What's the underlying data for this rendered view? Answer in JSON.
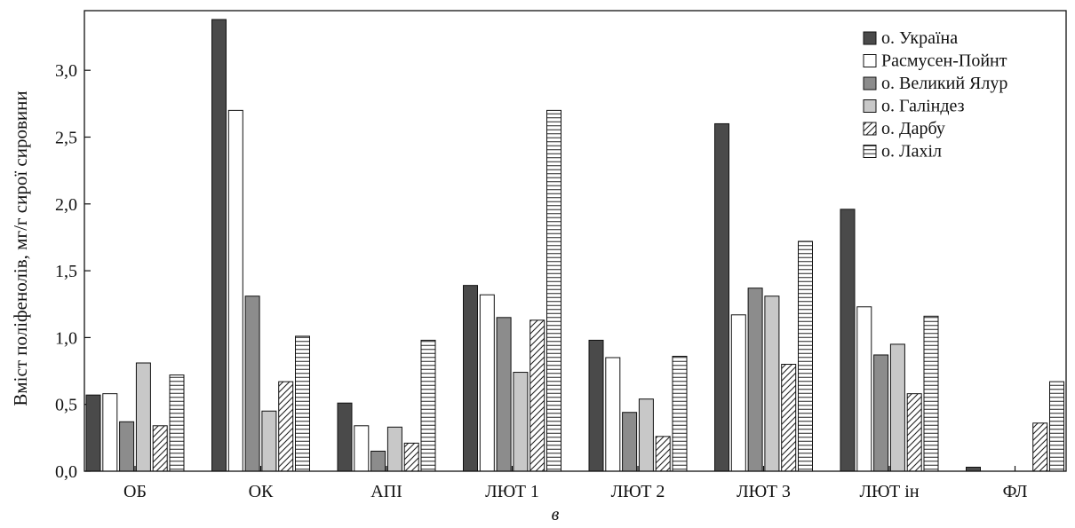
{
  "chart_data": {
    "type": "bar",
    "ylabel": "Вміст поліфенолів, мг/г сирої сировини",
    "xlabel": "в",
    "ylim": [
      0,
      3.4
    ],
    "y_ticks": [
      "0,0",
      "0,5",
      "1,0",
      "1,5",
      "2,0",
      "2,5",
      "3,0"
    ],
    "y_tick_values": [
      0,
      0.5,
      1.0,
      1.5,
      2.0,
      2.5,
      3.0
    ],
    "categories": [
      "ОБ",
      "ОК",
      "АПІ",
      "ЛЮТ 1",
      "ЛЮТ 2",
      "ЛЮТ 3",
      "ЛЮТ ін",
      "ФЛ"
    ],
    "legend_position": "top-right",
    "grid": false,
    "series": [
      {
        "name": "о. Україна",
        "pattern": "solid-dark",
        "color": "#4a4a4a",
        "values": [
          0.57,
          3.38,
          0.51,
          1.39,
          0.98,
          2.6,
          1.96,
          0.03
        ]
      },
      {
        "name": "Расмусен-Пойнт",
        "pattern": "white",
        "color": "#ffffff",
        "values": [
          0.58,
          2.7,
          0.34,
          1.32,
          0.85,
          1.17,
          1.23,
          0.0
        ]
      },
      {
        "name": "о. Великий Ялур",
        "pattern": "solid-mid",
        "color": "#8c8c8c",
        "values": [
          0.37,
          1.31,
          0.15,
          1.15,
          0.44,
          1.37,
          0.87,
          0.0
        ]
      },
      {
        "name": "о. Галіндез",
        "pattern": "solid-light",
        "color": "#c8c8c8",
        "values": [
          0.81,
          0.45,
          0.33,
          0.74,
          0.54,
          1.31,
          0.95,
          0.0
        ]
      },
      {
        "name": "о. Дарбу",
        "pattern": "diagonal-hatch",
        "color": "#ffffff",
        "values": [
          0.34,
          0.67,
          0.21,
          1.13,
          0.26,
          0.8,
          0.58,
          0.36
        ]
      },
      {
        "name": "о. Лахіл",
        "pattern": "horizontal-lines",
        "color": "#ffffff",
        "values": [
          0.72,
          1.01,
          0.98,
          2.7,
          0.86,
          1.72,
          1.16,
          0.67
        ]
      }
    ]
  }
}
